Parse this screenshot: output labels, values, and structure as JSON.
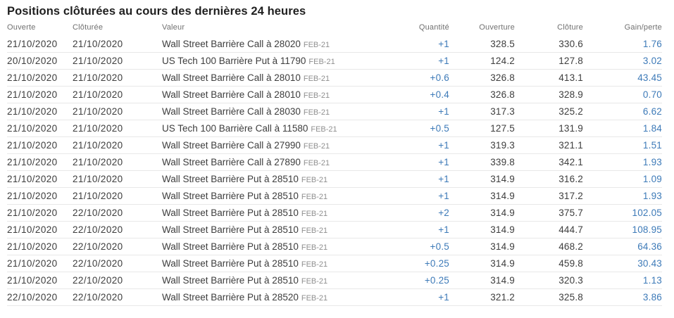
{
  "page": {
    "title": "Positions clôturées au cours des dernières 24 heures"
  },
  "table": {
    "columns": [
      {
        "key": "ouverte",
        "label": "Ouverte",
        "align": "left"
      },
      {
        "key": "cloturee",
        "label": "Clôturée",
        "align": "left"
      },
      {
        "key": "valeur",
        "label": "Valeur",
        "align": "left"
      },
      {
        "key": "quantite",
        "label": "Quantité",
        "align": "right"
      },
      {
        "key": "ouverture",
        "label": "Ouverture",
        "align": "right"
      },
      {
        "key": "cloture",
        "label": "Clôture",
        "align": "right"
      },
      {
        "key": "gain_perte",
        "label": "Gain/perte",
        "align": "right"
      }
    ],
    "rows": [
      {
        "ouverte": "21/10/2020",
        "cloturee": "21/10/2020",
        "valeur": "Wall Street Barrière Call à 28020",
        "periode": "FEB-21",
        "quantite": "+1",
        "ouverture": "328.5",
        "cloture": "330.6",
        "gain_perte": "1.76"
      },
      {
        "ouverte": "20/10/2020",
        "cloturee": "21/10/2020",
        "valeur": "US Tech 100 Barrière Put à 11790",
        "periode": "FEB-21",
        "quantite": "+1",
        "ouverture": "124.2",
        "cloture": "127.8",
        "gain_perte": "3.02"
      },
      {
        "ouverte": "21/10/2020",
        "cloturee": "21/10/2020",
        "valeur": "Wall Street Barrière Call à 28010",
        "periode": "FEB-21",
        "quantite": "+0.6",
        "ouverture": "326.8",
        "cloture": "413.1",
        "gain_perte": "43.45"
      },
      {
        "ouverte": "21/10/2020",
        "cloturee": "21/10/2020",
        "valeur": "Wall Street Barrière Call à 28010",
        "periode": "FEB-21",
        "quantite": "+0.4",
        "ouverture": "326.8",
        "cloture": "328.9",
        "gain_perte": "0.70"
      },
      {
        "ouverte": "21/10/2020",
        "cloturee": "21/10/2020",
        "valeur": "Wall Street Barrière Call à 28030",
        "periode": "FEB-21",
        "quantite": "+1",
        "ouverture": "317.3",
        "cloture": "325.2",
        "gain_perte": "6.62"
      },
      {
        "ouverte": "21/10/2020",
        "cloturee": "21/10/2020",
        "valeur": "US Tech 100 Barrière Call à 11580",
        "periode": "FEB-21",
        "quantite": "+0.5",
        "ouverture": "127.5",
        "cloture": "131.9",
        "gain_perte": "1.84"
      },
      {
        "ouverte": "21/10/2020",
        "cloturee": "21/10/2020",
        "valeur": "Wall Street Barrière Call à 27990",
        "periode": "FEB-21",
        "quantite": "+1",
        "ouverture": "319.3",
        "cloture": "321.1",
        "gain_perte": "1.51"
      },
      {
        "ouverte": "21/10/2020",
        "cloturee": "21/10/2020",
        "valeur": "Wall Street Barrière Call à 27890",
        "periode": "FEB-21",
        "quantite": "+1",
        "ouverture": "339.8",
        "cloture": "342.1",
        "gain_perte": "1.93"
      },
      {
        "ouverte": "21/10/2020",
        "cloturee": "21/10/2020",
        "valeur": "Wall Street Barrière Put à 28510",
        "periode": "FEB-21",
        "quantite": "+1",
        "ouverture": "314.9",
        "cloture": "316.2",
        "gain_perte": "1.09"
      },
      {
        "ouverte": "21/10/2020",
        "cloturee": "21/10/2020",
        "valeur": "Wall Street Barrière Put à 28510",
        "periode": "FEB-21",
        "quantite": "+1",
        "ouverture": "314.9",
        "cloture": "317.2",
        "gain_perte": "1.93"
      },
      {
        "ouverte": "21/10/2020",
        "cloturee": "22/10/2020",
        "valeur": "Wall Street Barrière Put à 28510",
        "periode": "FEB-21",
        "quantite": "+2",
        "ouverture": "314.9",
        "cloture": "375.7",
        "gain_perte": "102.05"
      },
      {
        "ouverte": "21/10/2020",
        "cloturee": "22/10/2020",
        "valeur": "Wall Street Barrière Put à 28510",
        "periode": "FEB-21",
        "quantite": "+1",
        "ouverture": "314.9",
        "cloture": "444.7",
        "gain_perte": "108.95"
      },
      {
        "ouverte": "21/10/2020",
        "cloturee": "22/10/2020",
        "valeur": "Wall Street Barrière Put à 28510",
        "periode": "FEB-21",
        "quantite": "+0.5",
        "ouverture": "314.9",
        "cloture": "468.2",
        "gain_perte": "64.36"
      },
      {
        "ouverte": "21/10/2020",
        "cloturee": "22/10/2020",
        "valeur": "Wall Street Barrière Put à 28510",
        "periode": "FEB-21",
        "quantite": "+0.25",
        "ouverture": "314.9",
        "cloture": "459.8",
        "gain_perte": "30.43"
      },
      {
        "ouverte": "21/10/2020",
        "cloturee": "22/10/2020",
        "valeur": "Wall Street Barrière Put à 28510",
        "periode": "FEB-21",
        "quantite": "+0.25",
        "ouverture": "314.9",
        "cloture": "320.3",
        "gain_perte": "1.13"
      },
      {
        "ouverte": "22/10/2020",
        "cloturee": "22/10/2020",
        "valeur": "Wall Street Barrière Put à 28520",
        "periode": "FEB-21",
        "quantite": "+1",
        "ouverture": "321.2",
        "cloture": "325.8",
        "gain_perte": "3.86"
      }
    ]
  },
  "colors": {
    "accent_blue": "#3d7ab8",
    "text_color": "#3d3d3d",
    "title_color": "#1f1f1f",
    "header_color": "#707070",
    "muted_color": "#8f8f8f",
    "border_color": "#e8e8e8"
  }
}
